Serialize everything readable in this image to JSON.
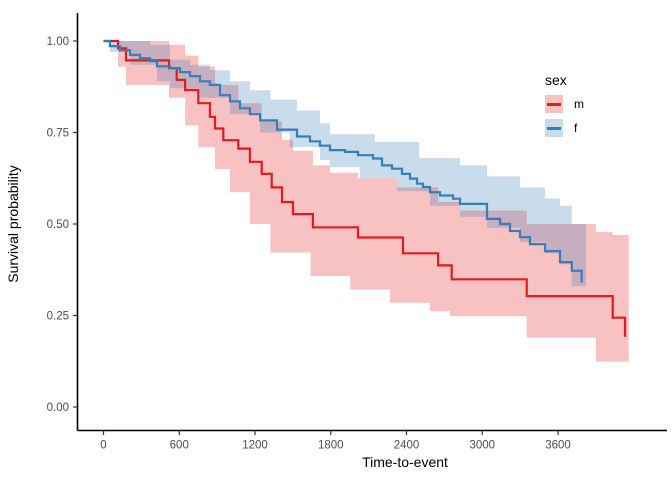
{
  "chart_data": {
    "type": "line",
    "subtype": "kaplan-meier-step",
    "step_interpolation": "hv",
    "title": "",
    "xlabel": "Time-to-event",
    "ylabel": "Survival probability",
    "xlim": [
      -450,
      4460
    ],
    "ylim": [
      -0.05,
      1.06
    ],
    "grid": false,
    "x_ticks": [
      0,
      600,
      1200,
      1800,
      2400,
      3000,
      3600
    ],
    "x_tick_labels": [
      "0",
      "600",
      "1200",
      "1800",
      "2400",
      "3000",
      "3600"
    ],
    "y_ticks": [
      0,
      0.25,
      0.5,
      0.75,
      1
    ],
    "y_tick_labels": [
      "0.00",
      "0.25",
      "0.50",
      "0.75",
      "1.00"
    ],
    "axis_color": "#000000",
    "tick_label_color": "#4d4d4d",
    "legend": {
      "title": "sex",
      "position": "top-right-inside",
      "items": [
        {
          "label": "m",
          "color": "#E41A1C",
          "band_color": "rgba(228,26,28,0.27)"
        },
        {
          "label": "f",
          "color": "#377EB8",
          "band_color": "rgba(55,126,184,0.27)"
        }
      ]
    },
    "series": [
      {
        "name": "m",
        "color": "#E41A1C",
        "band_color": "rgba(228,26,28,0.27)",
        "steps": [
          [
            0,
            1.0
          ],
          [
            115,
            0.98
          ],
          [
            178,
            0.947
          ],
          [
            519,
            0.926
          ],
          [
            580,
            0.894
          ],
          [
            646,
            0.866
          ],
          [
            751,
            0.83
          ],
          [
            843,
            0.793
          ],
          [
            883,
            0.761
          ],
          [
            949,
            0.729
          ],
          [
            1068,
            0.706
          ],
          [
            1160,
            0.67
          ],
          [
            1253,
            0.637
          ],
          [
            1332,
            0.6
          ],
          [
            1414,
            0.56
          ],
          [
            1501,
            0.527
          ],
          [
            1659,
            0.491
          ],
          [
            2016,
            0.463
          ],
          [
            2372,
            0.42
          ],
          [
            2650,
            0.387
          ],
          [
            2758,
            0.349
          ],
          [
            3352,
            0.303
          ],
          [
            4033,
            0.244
          ],
          [
            4131,
            0.192
          ]
        ],
        "upper": [
          [
            0,
            1.0
          ],
          [
            370,
            1.0
          ],
          [
            519,
            0.99
          ],
          [
            646,
            0.96
          ],
          [
            751,
            0.93
          ],
          [
            883,
            0.88
          ],
          [
            1068,
            0.83
          ],
          [
            1253,
            0.78
          ],
          [
            1414,
            0.73
          ],
          [
            1501,
            0.7
          ],
          [
            1659,
            0.66
          ],
          [
            1794,
            0.64
          ],
          [
            2016,
            0.625
          ],
          [
            2325,
            0.6
          ],
          [
            2650,
            0.56
          ],
          [
            2824,
            0.537
          ],
          [
            3352,
            0.5
          ],
          [
            3900,
            0.478
          ],
          [
            4033,
            0.47
          ],
          [
            4160,
            0.42
          ]
        ],
        "lower": [
          [
            0,
            1.0
          ],
          [
            115,
            0.93
          ],
          [
            178,
            0.88
          ],
          [
            519,
            0.845
          ],
          [
            646,
            0.77
          ],
          [
            751,
            0.71
          ],
          [
            883,
            0.65
          ],
          [
            1002,
            0.587
          ],
          [
            1160,
            0.5
          ],
          [
            1322,
            0.422
          ],
          [
            1640,
            0.358
          ],
          [
            1955,
            0.321
          ],
          [
            2270,
            0.285
          ],
          [
            2586,
            0.262
          ],
          [
            2745,
            0.248
          ],
          [
            3352,
            0.19
          ],
          [
            3900,
            0.124
          ],
          [
            4160,
            0.09
          ]
        ]
      },
      {
        "name": "f",
        "color": "#377EB8",
        "band_color": "rgba(55,126,184,0.27)",
        "steps": [
          [
            0,
            1.0
          ],
          [
            51,
            0.986
          ],
          [
            131,
            0.975
          ],
          [
            210,
            0.962
          ],
          [
            289,
            0.953
          ],
          [
            368,
            0.945
          ],
          [
            424,
            0.931
          ],
          [
            527,
            0.926
          ],
          [
            606,
            0.915
          ],
          [
            685,
            0.904
          ],
          [
            764,
            0.89
          ],
          [
            843,
            0.88
          ],
          [
            923,
            0.852
          ],
          [
            1002,
            0.835
          ],
          [
            1081,
            0.816
          ],
          [
            1160,
            0.8
          ],
          [
            1240,
            0.783
          ],
          [
            1374,
            0.758
          ],
          [
            1533,
            0.739
          ],
          [
            1636,
            0.726
          ],
          [
            1715,
            0.714
          ],
          [
            1794,
            0.702
          ],
          [
            1913,
            0.697
          ],
          [
            2016,
            0.688
          ],
          [
            2135,
            0.679
          ],
          [
            2206,
            0.66
          ],
          [
            2285,
            0.651
          ],
          [
            2364,
            0.637
          ],
          [
            2428,
            0.624
          ],
          [
            2483,
            0.61
          ],
          [
            2531,
            0.601
          ],
          [
            2586,
            0.587
          ],
          [
            2665,
            0.578
          ],
          [
            2768,
            0.569
          ],
          [
            2824,
            0.555
          ],
          [
            3038,
            0.514
          ],
          [
            3141,
            0.5
          ],
          [
            3220,
            0.481
          ],
          [
            3299,
            0.464
          ],
          [
            3378,
            0.445
          ],
          [
            3497,
            0.426
          ],
          [
            3616,
            0.396
          ],
          [
            3709,
            0.372
          ],
          [
            3788,
            0.34
          ]
        ],
        "upper": [
          [
            0,
            1.0
          ],
          [
            210,
            1.0
          ],
          [
            368,
            0.99
          ],
          [
            527,
            0.949
          ],
          [
            685,
            0.935
          ],
          [
            843,
            0.92
          ],
          [
            1002,
            0.89
          ],
          [
            1160,
            0.865
          ],
          [
            1322,
            0.84
          ],
          [
            1533,
            0.81
          ],
          [
            1715,
            0.775
          ],
          [
            1794,
            0.745
          ],
          [
            2150,
            0.724
          ],
          [
            2500,
            0.68
          ],
          [
            2824,
            0.66
          ],
          [
            3038,
            0.63
          ],
          [
            3299,
            0.6
          ],
          [
            3497,
            0.57
          ],
          [
            3616,
            0.55
          ],
          [
            3709,
            0.5
          ],
          [
            3820,
            0.46
          ]
        ],
        "lower": [
          [
            0,
            1.0
          ],
          [
            51,
            0.97
          ],
          [
            210,
            0.935
          ],
          [
            424,
            0.89
          ],
          [
            527,
            0.871
          ],
          [
            764,
            0.845
          ],
          [
            1002,
            0.8
          ],
          [
            1240,
            0.75
          ],
          [
            1475,
            0.71
          ],
          [
            1715,
            0.675
          ],
          [
            1794,
            0.655
          ],
          [
            2030,
            0.625
          ],
          [
            2325,
            0.59
          ],
          [
            2586,
            0.55
          ],
          [
            2824,
            0.52
          ],
          [
            3038,
            0.49
          ],
          [
            3299,
            0.45
          ],
          [
            3497,
            0.42
          ],
          [
            3616,
            0.39
          ],
          [
            3709,
            0.33
          ],
          [
            3820,
            0.27
          ]
        ]
      }
    ]
  }
}
